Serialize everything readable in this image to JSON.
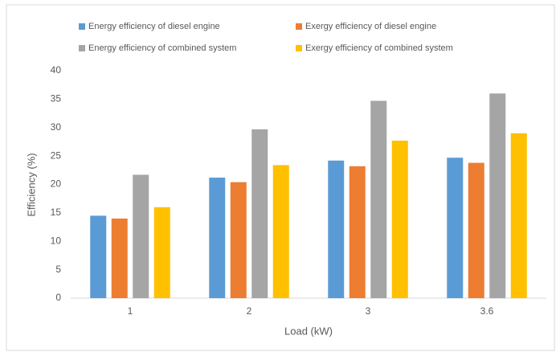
{
  "chart_data": {
    "type": "bar",
    "x_label": "Load (kW)",
    "y_label": "Efficiency (%)",
    "categories": [
      "1",
      "2",
      "3",
      "3.6"
    ],
    "series": [
      {
        "name": "Energy efficiency of diesel engine",
        "color": "#5b9bd5",
        "values": [
          14.5,
          21.2,
          24.2,
          24.7
        ]
      },
      {
        "name": "Exergy efficiency of diesel engine",
        "color": "#ed7d31",
        "values": [
          14,
          20.4,
          23.2,
          23.8
        ]
      },
      {
        "name": "Energy efficiency of combined system",
        "color": "#a5a5a5",
        "values": [
          21.7,
          29.7,
          34.7,
          36
        ]
      },
      {
        "name": "Exergy efficiency of combined system",
        "color": "#ffc000",
        "values": [
          16,
          23.4,
          27.7,
          29
        ]
      }
    ],
    "ylim": [
      0,
      40
    ],
    "yticks": [
      0,
      5,
      10,
      15,
      20,
      25,
      30,
      35,
      40
    ],
    "grid": false
  }
}
